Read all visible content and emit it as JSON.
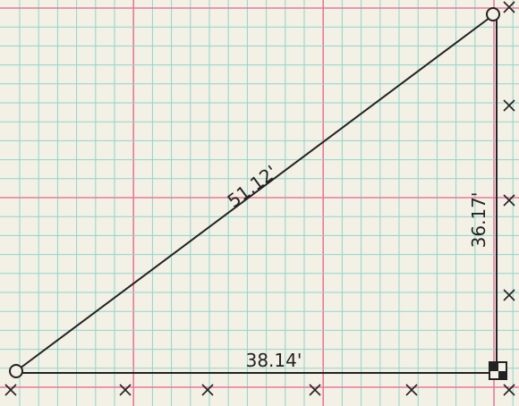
{
  "colors": {
    "paper": "#f3f0e6",
    "grid_minor": "#8fd6c7",
    "grid_major": "#e9789a",
    "ink": "#222222"
  },
  "labels": {
    "hypotenuse": "51.12'",
    "vertical_side": "36.17'",
    "base": "38.14'"
  },
  "figure": {
    "shape": "right triangle",
    "sides": {
      "hypotenuse_ft": 51.12,
      "vertical_ft": 36.17,
      "base_ft": 38.14
    },
    "vertices": [
      "circle",
      "circle",
      "square-corner"
    ],
    "tick_mark": "x"
  }
}
